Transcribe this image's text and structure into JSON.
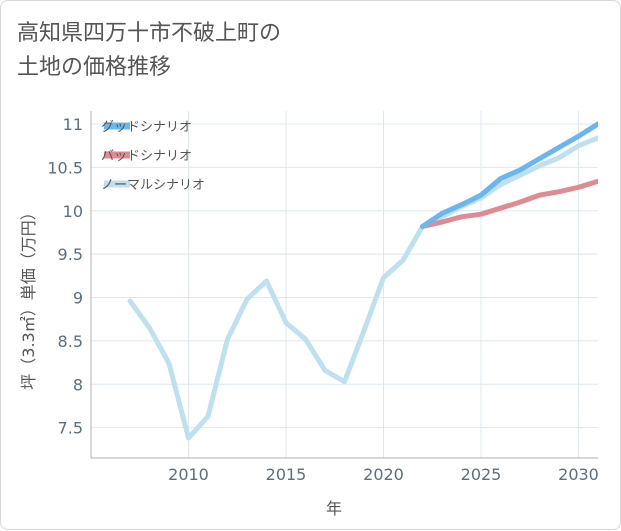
{
  "title": "高知県四万十市不破上町の\n土地の価格推移",
  "colors": {
    "grid": "#dde8f0",
    "axis": "#b0b0b0",
    "good": "#6ab7ef",
    "bad": "#e08a94",
    "normal": "#bfe0ee"
  },
  "chart_data": {
    "type": "line",
    "title": "高知県四万十市不破上町の\n土地の価格推移",
    "xlabel": "年",
    "ylabel": "坪（3.3㎡）単価（万円）",
    "xlim": [
      2005,
      2031
    ],
    "ylim": [
      7.15,
      11.15
    ],
    "xticks": [
      2010,
      2015,
      2020,
      2025,
      2030
    ],
    "yticks": [
      7.5,
      8,
      8.5,
      9,
      9.5,
      10,
      10.5,
      11
    ],
    "grid": true,
    "legend_position": "top-left",
    "series": [
      {
        "name": "グッドシナリオ",
        "color": "#6ab7ef",
        "x": [
          2022,
          2023,
          2024,
          2025,
          2026,
          2027,
          2028,
          2029,
          2030,
          2031
        ],
        "y": [
          9.82,
          9.97,
          10.07,
          10.18,
          10.37,
          10.47,
          10.6,
          10.73,
          10.86,
          11.0
        ]
      },
      {
        "name": "バッドシナリオ",
        "color": "#e08a94",
        "x": [
          2022,
          2023,
          2024,
          2025,
          2026,
          2027,
          2028,
          2029,
          2030,
          2031
        ],
        "y": [
          9.82,
          9.87,
          9.93,
          9.96,
          10.03,
          10.1,
          10.18,
          10.22,
          10.27,
          10.34
        ]
      },
      {
        "name": "ノーマルシナリオ",
        "color": "#bfe0ee",
        "x": [
          2007,
          2008,
          2009,
          2010,
          2011,
          2012,
          2013,
          2014,
          2015,
          2016,
          2017,
          2018,
          2019,
          2020,
          2021,
          2022,
          2023,
          2024,
          2025,
          2026,
          2027,
          2028,
          2029,
          2030,
          2031
        ],
        "y": [
          8.96,
          8.65,
          8.24,
          7.38,
          7.63,
          8.52,
          8.98,
          9.19,
          8.71,
          8.52,
          8.16,
          8.03,
          8.62,
          9.23,
          9.43,
          9.82,
          9.93,
          10.05,
          10.15,
          10.3,
          10.41,
          10.52,
          10.61,
          10.75,
          10.84
        ]
      }
    ]
  }
}
